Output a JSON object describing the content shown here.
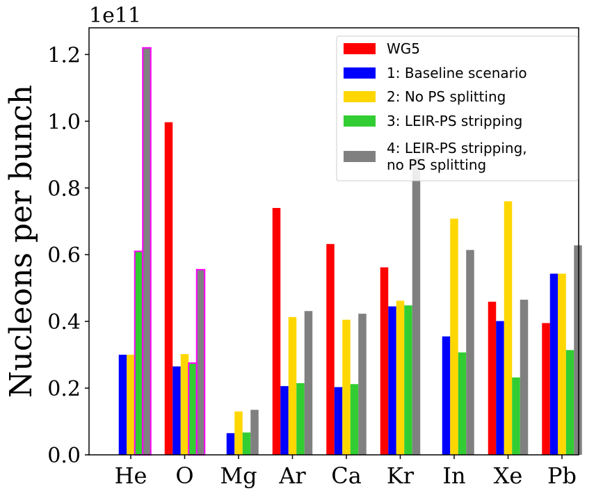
{
  "chart_data": {
    "type": "bar",
    "ylabel": "Nucleons per bunch",
    "offset_label": "1e11",
    "ylim": [
      0,
      1.28
    ],
    "yticks": [
      "0.0",
      "0.2",
      "0.4",
      "0.6",
      "0.8",
      "1.0",
      "1.2"
    ],
    "grid": false,
    "legend_position": "top-right",
    "categories": [
      "He",
      "O",
      "Mg",
      "Ar",
      "Ca",
      "Kr",
      "In",
      "Xe",
      "Pb"
    ],
    "series": [
      {
        "name": "WG5",
        "color": "#ff0000",
        "values": [
          0,
          0.997,
          0,
          0.74,
          0.632,
          0.562,
          0,
          0.459,
          0.395
        ]
      },
      {
        "name": "1: Baseline scenario",
        "color": "#0000ff",
        "values": [
          0.3,
          0.265,
          0.065,
          0.206,
          0.203,
          0.445,
          0.355,
          0.401,
          0.543
        ]
      },
      {
        "name": "2: No PS splitting",
        "color": "#ffd700",
        "values": [
          0.3,
          0.302,
          0.13,
          0.413,
          0.405,
          0.462,
          0.708,
          0.76,
          0.543
        ]
      },
      {
        "name": "3: LEIR-PS stripping",
        "color": "#32cd32",
        "values": [
          0.61,
          0.275,
          0.067,
          0.215,
          0.212,
          0.448,
          0.307,
          0.232,
          0.314
        ]
      },
      {
        "name": "4: LEIR-PS stripping,\nno PS splitting",
        "color": "#808080",
        "values": [
          1.22,
          0.555,
          0.135,
          0.431,
          0.423,
          0.89,
          0.614,
          0.465,
          0.628
        ]
      }
    ],
    "highlighted_bars": [
      {
        "category": "He",
        "series": 3
      },
      {
        "category": "He",
        "series": 4
      },
      {
        "category": "O",
        "series": 3
      },
      {
        "category": "O",
        "series": 4
      }
    ],
    "highlight_color": "#ff00ff"
  }
}
